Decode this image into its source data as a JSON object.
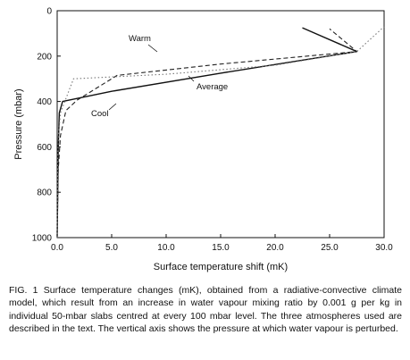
{
  "chart_data": {
    "type": "line",
    "title": "",
    "xlabel": "Surface temperature shift (mK)",
    "ylabel": "Pressure (mbar)",
    "xlim": [
      0,
      30
    ],
    "ylim": [
      1000,
      0
    ],
    "y_inverted": true,
    "grid": false,
    "legend": "none",
    "x_ticks": [
      "0.0",
      "5.0",
      "10.0",
      "15.0",
      "20.0",
      "25.0",
      "30.0"
    ],
    "y_ticks": [
      "0",
      "200",
      "400",
      "600",
      "800",
      "1000"
    ],
    "series": [
      {
        "name": "Average",
        "style": "solid",
        "x": [
          0.0,
          0.05,
          0.1,
          0.2,
          0.5,
          5.0,
          15.0,
          27.5,
          22.5
        ],
        "y": [
          1000,
          800,
          600,
          450,
          400,
          355,
          275,
          180,
          75
        ]
      },
      {
        "name": "Warm",
        "style": "dashed",
        "x": [
          0.0,
          0.1,
          0.3,
          0.8,
          1.8,
          5.5,
          15.0,
          27.5,
          25.0
        ],
        "y": [
          1000,
          700,
          550,
          440,
          395,
          285,
          235,
          180,
          80
        ]
      },
      {
        "name": "Cool",
        "style": "dotted",
        "x": [
          0.0,
          0.05,
          0.1,
          0.3,
          1.5,
          10.0,
          20.0,
          27.5,
          30.0
        ],
        "y": [
          1000,
          650,
          560,
          450,
          300,
          280,
          240,
          180,
          70
        ]
      }
    ],
    "annotations": [
      "Warm",
      "Average",
      "Cool"
    ]
  },
  "caption": "FIG. 1 Surface temperature changes (mK), obtained from a radiative-convective climate model, which result from an increase in water vapour mixing ratio by 0.001 g per kg in individual 50-mbar slabs centred at every 100 mbar level. The three atmospheres used are described in the text. The vertical axis shows the pressure at which water vapour is perturbed."
}
